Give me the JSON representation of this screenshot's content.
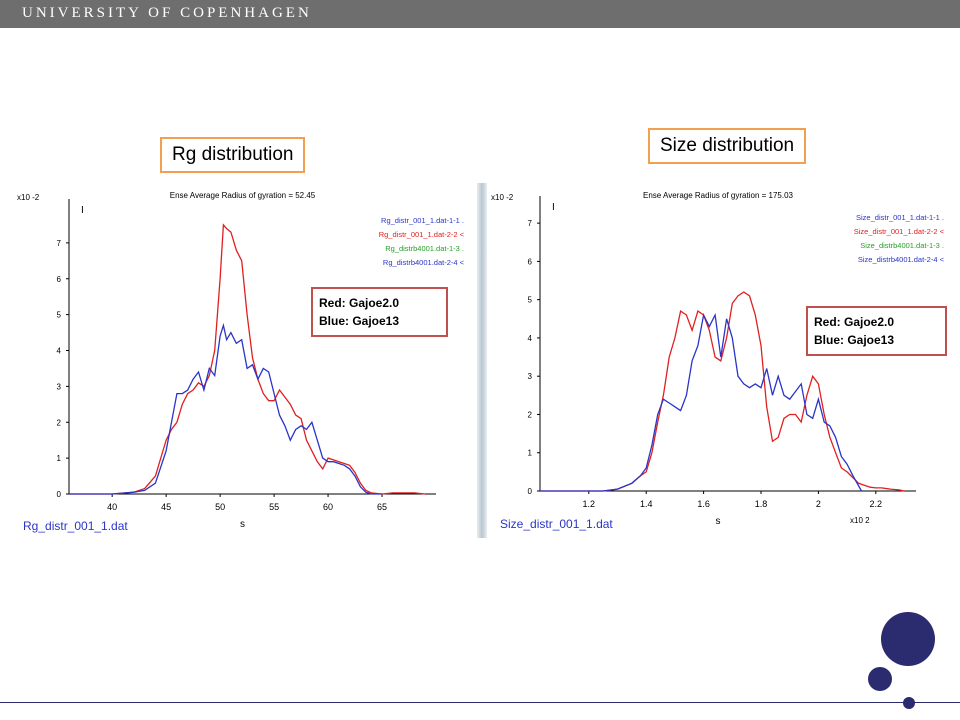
{
  "header": {
    "institution": "UNIVERSITY OF COPENHAGEN"
  },
  "colors": {
    "red": "#e02020",
    "blue": "#2a35c8",
    "green": "#28a028",
    "navy": "#2b2b70",
    "orange": "#f0a050"
  },
  "panels": [
    {
      "title_box": "Rg distribution",
      "annotation": {
        "line1": "Red: Gajoe2.0",
        "line2": "Blue: Gajoe13"
      },
      "file_label": "Rg_distr_001_1.dat"
    },
    {
      "title_box": "Size distribution",
      "annotation": {
        "line1": "Red: Gajoe2.0",
        "line2": "Blue: Gajoe13"
      },
      "file_label": "Size_distr_001_1.dat"
    }
  ],
  "chart_data": [
    {
      "type": "line",
      "title": "Ense Average Radius of gyration = 52.45",
      "xlabel": "s",
      "ylabel": "I",
      "y_multiplier": "x10 -2",
      "xlim": [
        36,
        70
      ],
      "ylim": [
        0,
        8
      ],
      "xticks": [
        40,
        45,
        50,
        55,
        60,
        65
      ],
      "yticks": [
        0,
        1,
        2,
        3,
        4,
        5,
        6,
        7
      ],
      "legend_position": "top-right",
      "legend": [
        {
          "label": "Rg_distr_001_1.dat-1-1",
          "marker": ".",
          "color": "#2a35c8"
        },
        {
          "label": "Rg_distr_001_1.dat-2-2",
          "marker": "<",
          "color": "#e02020"
        },
        {
          "label": "Rg_distrb4001.dat-1-3",
          "marker": ".",
          "color": "#28a028"
        },
        {
          "label": "Rg_distrb4001.dat-2-4",
          "marker": "<",
          "color": "#2a35c8"
        }
      ],
      "series": [
        {
          "name": "Rg_distr_001_1.dat-2-2",
          "color": "#e02020",
          "x": [
            36,
            40,
            42,
            43,
            44,
            45,
            45.5,
            46,
            46.5,
            47,
            47.5,
            48,
            48.5,
            49,
            49.5,
            50,
            50.3,
            50.6,
            51,
            51.5,
            52,
            52.5,
            53,
            53.5,
            54,
            54.5,
            55,
            55.5,
            56,
            56.5,
            57,
            57.5,
            58,
            58.5,
            59,
            59.5,
            60,
            60.5,
            61,
            61.5,
            62,
            62.5,
            63,
            63.5,
            64,
            65,
            66,
            67,
            68,
            69
          ],
          "y": [
            0,
            0,
            0.05,
            0.15,
            0.5,
            1.5,
            1.8,
            2.0,
            2.5,
            2.8,
            2.9,
            3.1,
            3.0,
            3.3,
            4.0,
            6.0,
            7.5,
            7.4,
            7.3,
            6.8,
            6.5,
            5.0,
            3.8,
            3.2,
            2.8,
            2.6,
            2.6,
            2.9,
            2.7,
            2.5,
            2.2,
            2.1,
            1.5,
            1.2,
            0.9,
            0.7,
            1.0,
            0.95,
            0.9,
            0.85,
            0.8,
            0.6,
            0.3,
            0.1,
            0.03,
            0,
            0.03,
            0.03,
            0.03,
            0
          ]
        },
        {
          "name": "Rg_distr_001_1.dat-1-1",
          "color": "#2a35c8",
          "x": [
            36,
            40,
            42,
            43,
            44,
            45,
            45.5,
            46,
            46.5,
            47,
            47.5,
            48,
            48.5,
            49,
            49.5,
            50,
            50.3,
            50.6,
            51,
            51.5,
            52,
            52.5,
            53,
            53.5,
            54,
            54.5,
            55,
            55.5,
            56,
            56.5,
            57,
            57.5,
            58,
            58.5,
            59,
            59.5,
            60,
            60.5,
            61,
            61.5,
            62,
            62.5,
            63,
            63.5,
            64,
            65
          ],
          "y": [
            0,
            0,
            0.05,
            0.1,
            0.3,
            1.2,
            2.0,
            2.8,
            2.8,
            2.9,
            3.2,
            3.4,
            2.9,
            3.5,
            3.3,
            4.4,
            4.7,
            4.3,
            4.5,
            4.2,
            4.3,
            3.5,
            3.6,
            3.2,
            3.5,
            3.4,
            2.8,
            2.2,
            1.9,
            1.5,
            1.8,
            1.9,
            1.8,
            2.0,
            1.5,
            1.0,
            0.9,
            0.9,
            0.85,
            0.8,
            0.7,
            0.5,
            0.2,
            0.05,
            0,
            0
          ]
        }
      ]
    },
    {
      "type": "line",
      "title": "Ense Average Radius of gyration = 175.03",
      "xlabel": "s",
      "ylabel": "I",
      "y_multiplier": "x10 -2",
      "x_multiplier": "x10 2",
      "xlim": [
        1.03,
        2.34
      ],
      "ylim": [
        0,
        7.5
      ],
      "xticks": [
        1.2,
        1.4,
        1.6,
        1.8,
        2,
        2.2
      ],
      "yticks": [
        0,
        1,
        2,
        3,
        4,
        5,
        6,
        7
      ],
      "legend_position": "top-right",
      "legend": [
        {
          "label": "Size_distr_001_1.dat-1-1",
          "marker": ".",
          "color": "#2a35c8"
        },
        {
          "label": "Size_distr_001_1.dat-2-2",
          "marker": "<",
          "color": "#e02020"
        },
        {
          "label": "Size_distrb4001.dat-1-3",
          "marker": ".",
          "color": "#28a028"
        },
        {
          "label": "Size_distrb4001.dat-2-4",
          "marker": "<",
          "color": "#2a35c8"
        }
      ],
      "series": [
        {
          "name": "Size_distr_001_1.dat-2-2",
          "color": "#e02020",
          "x": [
            1.03,
            1.25,
            1.3,
            1.35,
            1.38,
            1.4,
            1.42,
            1.44,
            1.46,
            1.48,
            1.5,
            1.52,
            1.54,
            1.56,
            1.58,
            1.6,
            1.62,
            1.64,
            1.66,
            1.68,
            1.7,
            1.72,
            1.74,
            1.76,
            1.78,
            1.8,
            1.82,
            1.84,
            1.86,
            1.88,
            1.9,
            1.92,
            1.94,
            1.96,
            1.98,
            2,
            2.02,
            2.04,
            2.06,
            2.08,
            2.1,
            2.12,
            2.14,
            2.16,
            2.18,
            2.2,
            2.22,
            2.25,
            2.28,
            2.3
          ],
          "y": [
            0,
            0,
            0.05,
            0.2,
            0.4,
            0.5,
            1.0,
            1.8,
            2.5,
            3.5,
            4.0,
            4.7,
            4.6,
            4.2,
            4.7,
            4.6,
            4.2,
            3.5,
            3.4,
            4.0,
            4.9,
            5.1,
            5.2,
            5.1,
            4.6,
            3.8,
            2.2,
            1.3,
            1.4,
            1.9,
            2.0,
            2.0,
            1.8,
            2.5,
            3.0,
            2.8,
            2.0,
            1.4,
            1.0,
            0.6,
            0.5,
            0.35,
            0.2,
            0.15,
            0.1,
            0.08,
            0.08,
            0.05,
            0.03,
            0
          ]
        },
        {
          "name": "Size_distr_001_1.dat-1-1",
          "color": "#2a35c8",
          "x": [
            1.03,
            1.25,
            1.3,
            1.35,
            1.38,
            1.4,
            1.42,
            1.44,
            1.46,
            1.48,
            1.5,
            1.52,
            1.54,
            1.56,
            1.58,
            1.6,
            1.62,
            1.64,
            1.66,
            1.68,
            1.7,
            1.72,
            1.74,
            1.76,
            1.78,
            1.8,
            1.82,
            1.84,
            1.86,
            1.88,
            1.9,
            1.92,
            1.94,
            1.96,
            1.98,
            2,
            2.02,
            2.04,
            2.06,
            2.08,
            2.1,
            2.12,
            2.15
          ],
          "y": [
            0,
            0,
            0.05,
            0.2,
            0.4,
            0.6,
            1.2,
            2.0,
            2.4,
            2.3,
            2.2,
            2.1,
            2.5,
            3.4,
            3.8,
            4.6,
            4.3,
            4.6,
            3.5,
            4.5,
            4.0,
            3.0,
            2.8,
            2.7,
            2.8,
            2.7,
            3.2,
            2.5,
            3.0,
            2.5,
            2.4,
            2.6,
            2.8,
            2.0,
            1.9,
            2.4,
            1.8,
            1.7,
            1.4,
            0.9,
            0.7,
            0.4,
            0
          ]
        }
      ]
    }
  ]
}
